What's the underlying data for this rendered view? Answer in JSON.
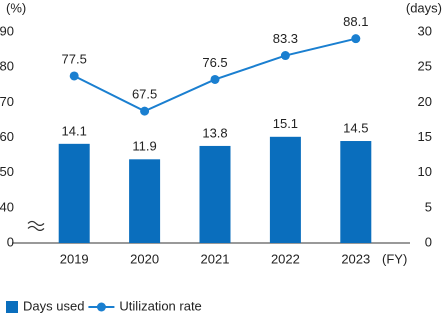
{
  "chart_data": {
    "type": "bar-line",
    "y_axis_label": "(%)",
    "y2_axis_label": "(days)",
    "x_axis_label": "(FY)",
    "categories": [
      "2019",
      "2020",
      "2021",
      "2022",
      "2023"
    ],
    "series": [
      {
        "name": "Days used",
        "type": "bar",
        "axis": "y2",
        "color": "#0a6ebd",
        "values": [
          14.1,
          11.9,
          13.8,
          15.1,
          14.5
        ]
      },
      {
        "name": "Utilization rate",
        "type": "line",
        "axis": "y",
        "color": "#1a7fd0",
        "values": [
          77.5,
          67.5,
          76.5,
          83.3,
          88.1
        ]
      }
    ],
    "ylim": [
      0,
      90
    ],
    "y_break": [
      0,
      40
    ],
    "yticks": [
      0,
      40,
      50,
      60,
      70,
      80,
      90
    ],
    "y2lim": [
      0,
      30
    ],
    "y2ticks": [
      0,
      5,
      10,
      15,
      20,
      25,
      30
    ],
    "legend": "bottom-left"
  }
}
